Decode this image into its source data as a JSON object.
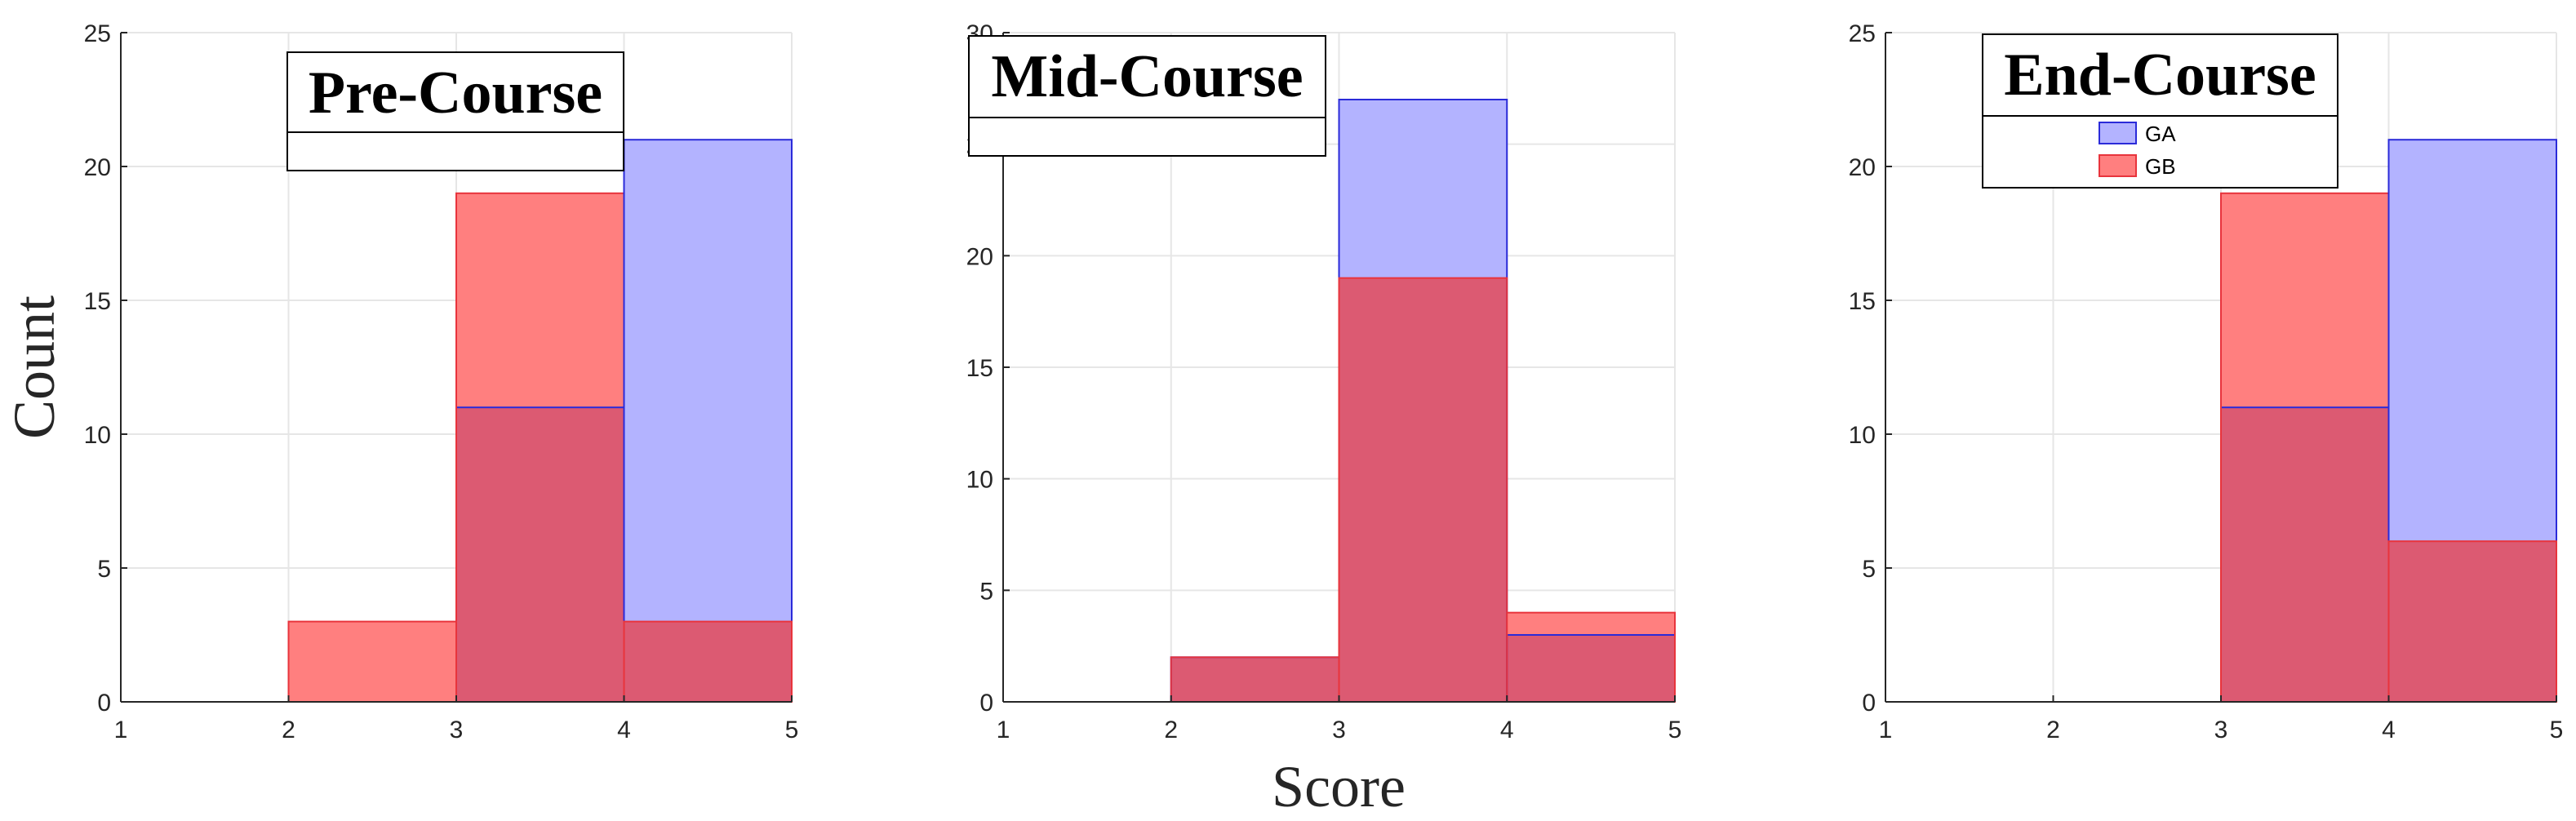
{
  "figure": {
    "xlabel": "Score",
    "ylabel": "Count"
  },
  "legend": {
    "entries": [
      {
        "name": "GA",
        "fill": "#b3b3ff",
        "stroke": "#2b2bd9"
      },
      {
        "name": "GB",
        "fill": "#ff7f7f",
        "stroke": "#e8343c"
      }
    ]
  },
  "colors": {
    "overlap": "#dc5a72",
    "grid": "#e6e6e6",
    "axis": "#262626"
  },
  "chart_data": [
    {
      "type": "bar",
      "title": "Pre-Course",
      "bin_edges": [
        1,
        2,
        3,
        4,
        5
      ],
      "series": [
        {
          "name": "GA",
          "values": [
            0,
            0,
            11,
            21
          ]
        },
        {
          "name": "GB",
          "values": [
            0,
            3,
            19,
            3
          ]
        }
      ],
      "xlim": [
        1,
        5
      ],
      "ylim": [
        0,
        25
      ],
      "xticks": [
        "1",
        "2",
        "3",
        "4",
        "5"
      ],
      "yticks": [
        "0",
        "5",
        "10",
        "15",
        "20",
        "25"
      ],
      "grid": true,
      "legend_visible": false
    },
    {
      "type": "bar",
      "title": "Mid-Course",
      "bin_edges": [
        1,
        2,
        3,
        4,
        5
      ],
      "series": [
        {
          "name": "GA",
          "values": [
            0,
            2,
            27,
            3
          ]
        },
        {
          "name": "GB",
          "values": [
            0,
            2,
            19,
            4
          ]
        }
      ],
      "xlim": [
        1,
        5
      ],
      "ylim": [
        0,
        30
      ],
      "xticks": [
        "1",
        "2",
        "3",
        "4",
        "5"
      ],
      "yticks": [
        "0",
        "5",
        "10",
        "15",
        "20",
        "25",
        "30"
      ],
      "grid": true,
      "legend_visible": false
    },
    {
      "type": "bar",
      "title": "End-Course",
      "bin_edges": [
        1,
        2,
        3,
        4,
        5
      ],
      "series": [
        {
          "name": "GA",
          "values": [
            0,
            0,
            11,
            21
          ]
        },
        {
          "name": "GB",
          "values": [
            0,
            0,
            19,
            6
          ]
        }
      ],
      "xlim": [
        1,
        5
      ],
      "ylim": [
        0,
        25
      ],
      "xticks": [
        "1",
        "2",
        "3",
        "4",
        "5"
      ],
      "yticks": [
        "0",
        "5",
        "10",
        "15",
        "20",
        "25"
      ],
      "grid": true,
      "legend_visible": true
    }
  ]
}
